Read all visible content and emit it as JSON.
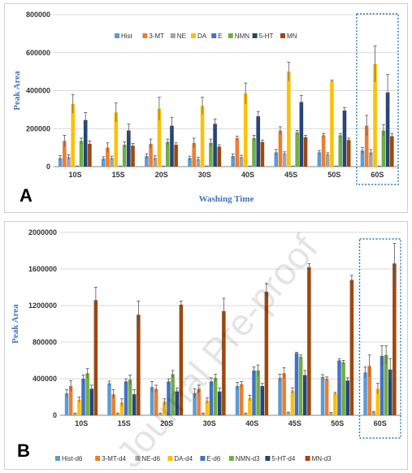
{
  "colors": {
    "Hist": "#5b9bd5",
    "3-MT": "#ed7d31",
    "NE": "#a5a5a5",
    "DA": "#ffc000",
    "E": "#4472c4",
    "NMN": "#70ad47",
    "5-HT": "#264478",
    "MN": "#9e480e",
    "highlight": "#2e75b6"
  },
  "watermark": "Journal Pre-proof",
  "chart_data": [
    {
      "type": "bar",
      "panel_label": "A",
      "title": "",
      "xlabel": "Washing Time",
      "ylabel": "Peak Area",
      "ylim": [
        0,
        800000
      ],
      "yticks": [
        "0",
        "200000",
        "400000",
        "600000",
        "800000"
      ],
      "categories": [
        "10S",
        "15S",
        "20S",
        "30S",
        "40S",
        "45S",
        "50S",
        "60S"
      ],
      "legend_position": "top",
      "highlighted_category": "60S",
      "series": [
        {
          "name": "Hist",
          "color_key": "Hist",
          "values": [
            45000,
            42000,
            55000,
            45000,
            55000,
            75000,
            75000,
            85000
          ],
          "errors": [
            12000,
            10000,
            12000,
            10000,
            12000,
            15000,
            10000,
            15000
          ]
        },
        {
          "name": "3-MT",
          "color_key": "3-MT",
          "values": [
            135000,
            100000,
            120000,
            125000,
            150000,
            190000,
            165000,
            215000
          ],
          "errors": [
            30000,
            25000,
            25000,
            25000,
            10000,
            20000,
            10000,
            55000
          ]
        },
        {
          "name": "NE",
          "color_key": "NE",
          "values": [
            50000,
            45000,
            45000,
            40000,
            50000,
            70000,
            65000,
            75000
          ],
          "errors": [
            12000,
            10000,
            12000,
            10000,
            10000,
            8000,
            8000,
            15000
          ]
        },
        {
          "name": "DA",
          "color_key": "DA",
          "values": [
            330000,
            285000,
            305000,
            320000,
            385000,
            500000,
            450000,
            540000
          ],
          "errors": [
            50000,
            50000,
            60000,
            45000,
            55000,
            50000,
            5000,
            95000
          ]
        },
        {
          "name": "E",
          "color_key": "E",
          "values": [
            5000,
            5000,
            5000,
            5000,
            5000,
            5000,
            5000,
            5000
          ],
          "errors": [
            0,
            0,
            0,
            0,
            0,
            0,
            0,
            0
          ]
        },
        {
          "name": "NMN",
          "color_key": "NMN",
          "values": [
            135000,
            115000,
            130000,
            125000,
            150000,
            180000,
            165000,
            190000
          ],
          "errors": [
            15000,
            15000,
            15000,
            20000,
            15000,
            10000,
            10000,
            30000
          ]
        },
        {
          "name": "5-HT",
          "color_key": "5-HT",
          "values": [
            245000,
            190000,
            215000,
            225000,
            265000,
            340000,
            295000,
            390000
          ],
          "errors": [
            40000,
            35000,
            45000,
            25000,
            25000,
            35000,
            15000,
            95000
          ]
        },
        {
          "name": "MN",
          "color_key": "MN",
          "values": [
            120000,
            110000,
            115000,
            105000,
            130000,
            155000,
            140000,
            160000
          ],
          "errors": [
            15000,
            12000,
            10000,
            10000,
            10000,
            10000,
            10000,
            15000
          ]
        }
      ]
    },
    {
      "type": "bar",
      "panel_label": "B",
      "title": "",
      "xlabel": "",
      "ylabel": "Peak Area",
      "ylim": [
        0,
        2000000
      ],
      "yticks": [
        "0",
        "400000",
        "800000",
        "1200000",
        "1600000",
        "2000000"
      ],
      "categories": [
        "10S",
        "15S",
        "20S",
        "30S",
        "40S",
        "45S",
        "50S",
        "60S"
      ],
      "legend_position": "bottom",
      "highlighted_category": "60S",
      "series": [
        {
          "name": "Hist-d6",
          "color_key": "Hist",
          "values": [
            240000,
            350000,
            310000,
            240000,
            320000,
            410000,
            420000,
            470000
          ],
          "errors": [
            40000,
            25000,
            60000,
            50000,
            40000,
            40000,
            25000,
            60000
          ]
        },
        {
          "name": "3-MT-d4",
          "color_key": "3-MT",
          "values": [
            320000,
            230000,
            290000,
            290000,
            340000,
            460000,
            400000,
            540000
          ],
          "errors": [
            60000,
            50000,
            40000,
            40000,
            30000,
            60000,
            20000,
            120000
          ]
        },
        {
          "name": "NE-d6",
          "color_key": "NE",
          "values": [
            20000,
            20000,
            20000,
            20000,
            20000,
            30000,
            25000,
            35000
          ],
          "errors": [
            5000,
            5000,
            5000,
            5000,
            5000,
            5000,
            5000,
            8000
          ]
        },
        {
          "name": "DA-d4",
          "color_key": "DA",
          "values": [
            170000,
            140000,
            150000,
            160000,
            190000,
            270000,
            240000,
            290000
          ],
          "errors": [
            30000,
            40000,
            30000,
            30000,
            30000,
            30000,
            10000,
            60000
          ]
        },
        {
          "name": "E-d6",
          "color_key": "E",
          "values": [
            400000,
            370000,
            370000,
            370000,
            490000,
            680000,
            600000,
            650000
          ],
          "errors": [
            40000,
            30000,
            30000,
            40000,
            40000,
            10000,
            20000,
            110000
          ]
        },
        {
          "name": "NMN-d3",
          "color_key": "NMN",
          "values": [
            460000,
            390000,
            450000,
            410000,
            490000,
            640000,
            580000,
            660000
          ],
          "errors": [
            50000,
            50000,
            40000,
            40000,
            60000,
            20000,
            20000,
            100000
          ]
        },
        {
          "name": "5-HT-d4",
          "color_key": "5-HT",
          "values": [
            290000,
            230000,
            260000,
            260000,
            320000,
            440000,
            380000,
            500000
          ],
          "errors": [
            40000,
            50000,
            40000,
            40000,
            30000,
            50000,
            30000,
            120000
          ]
        },
        {
          "name": "MN-d3",
          "color_key": "MN",
          "values": [
            1260000,
            1100000,
            1210000,
            1140000,
            1350000,
            1620000,
            1480000,
            1660000
          ],
          "errors": [
            140000,
            150000,
            40000,
            140000,
            90000,
            40000,
            50000,
            220000
          ]
        }
      ]
    }
  ]
}
